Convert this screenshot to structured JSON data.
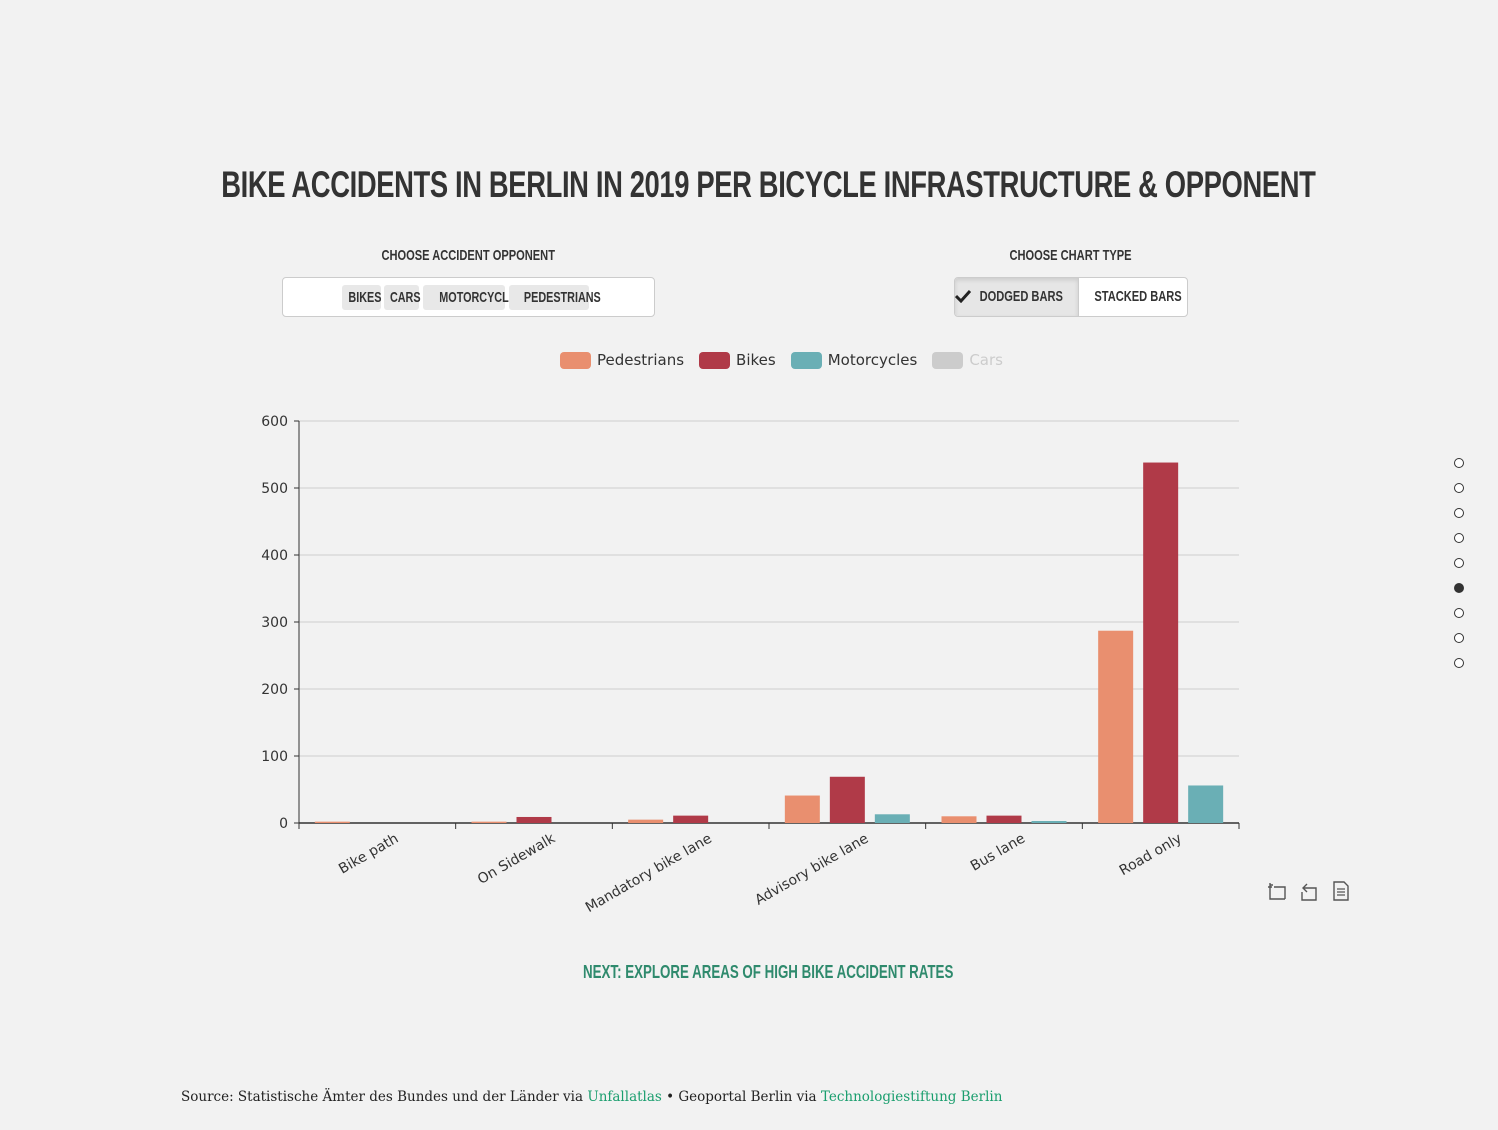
{
  "title": "BIKE ACCIDENTS IN BERLIN IN 2019 PER BICYCLE INFRASTRUCTURE & OPPONENT",
  "controls": {
    "opponent_label": "CHOOSE ACCIDENT OPPONENT",
    "opponent_tags": [
      "BIKES",
      "CARS",
      "MOTORCYCLES",
      "PEDESTRIANS"
    ],
    "charttype_label": "CHOOSE CHART TYPE",
    "charttype_options": [
      {
        "label": "DODGED BARS",
        "selected": true
      },
      {
        "label": "STACKED BARS",
        "selected": false
      }
    ]
  },
  "legend": [
    {
      "name": "Pedestrians",
      "color": "#e98f6f",
      "active": true
    },
    {
      "name": "Bikes",
      "color": "#b03a48",
      "active": true
    },
    {
      "name": "Motorcycles",
      "color": "#6aafb5",
      "active": true
    },
    {
      "name": "Cars",
      "color": "#cccccc",
      "active": false
    }
  ],
  "chart_data": {
    "type": "bar",
    "categories": [
      "Bike path",
      "On Sidewalk",
      "Mandatory bike lane",
      "Advisory bike lane",
      "Bus lane",
      "Road only"
    ],
    "series": [
      {
        "name": "Pedestrians",
        "color": "#e98f6f",
        "values": [
          2,
          2,
          5,
          41,
          10,
          287
        ]
      },
      {
        "name": "Bikes",
        "color": "#b03a48",
        "values": [
          0,
          9,
          11,
          69,
          11,
          538
        ]
      },
      {
        "name": "Motorcycles",
        "color": "#6aafb5",
        "values": [
          0,
          0,
          0,
          13,
          3,
          56
        ]
      }
    ],
    "yticks": [
      0,
      100,
      200,
      300,
      400,
      500,
      600
    ],
    "ylim": [
      0,
      600
    ],
    "grid": true,
    "legend_position": "top-center"
  },
  "toolbox": [
    "zoom-icon",
    "restore-icon",
    "data-view-icon"
  ],
  "next_link": "NEXT: EXPLORE AREAS OF HIGH BIKE ACCIDENT RATES",
  "source": {
    "prefix": "Source: Statistische Ämter des Bundes und der Länder via ",
    "link1": "Unfallatlas",
    "middle": " • Geoportal Berlin via ",
    "link2": "Technologiestiftung Berlin"
  },
  "page_nav": {
    "count": 9,
    "active_index": 5
  }
}
